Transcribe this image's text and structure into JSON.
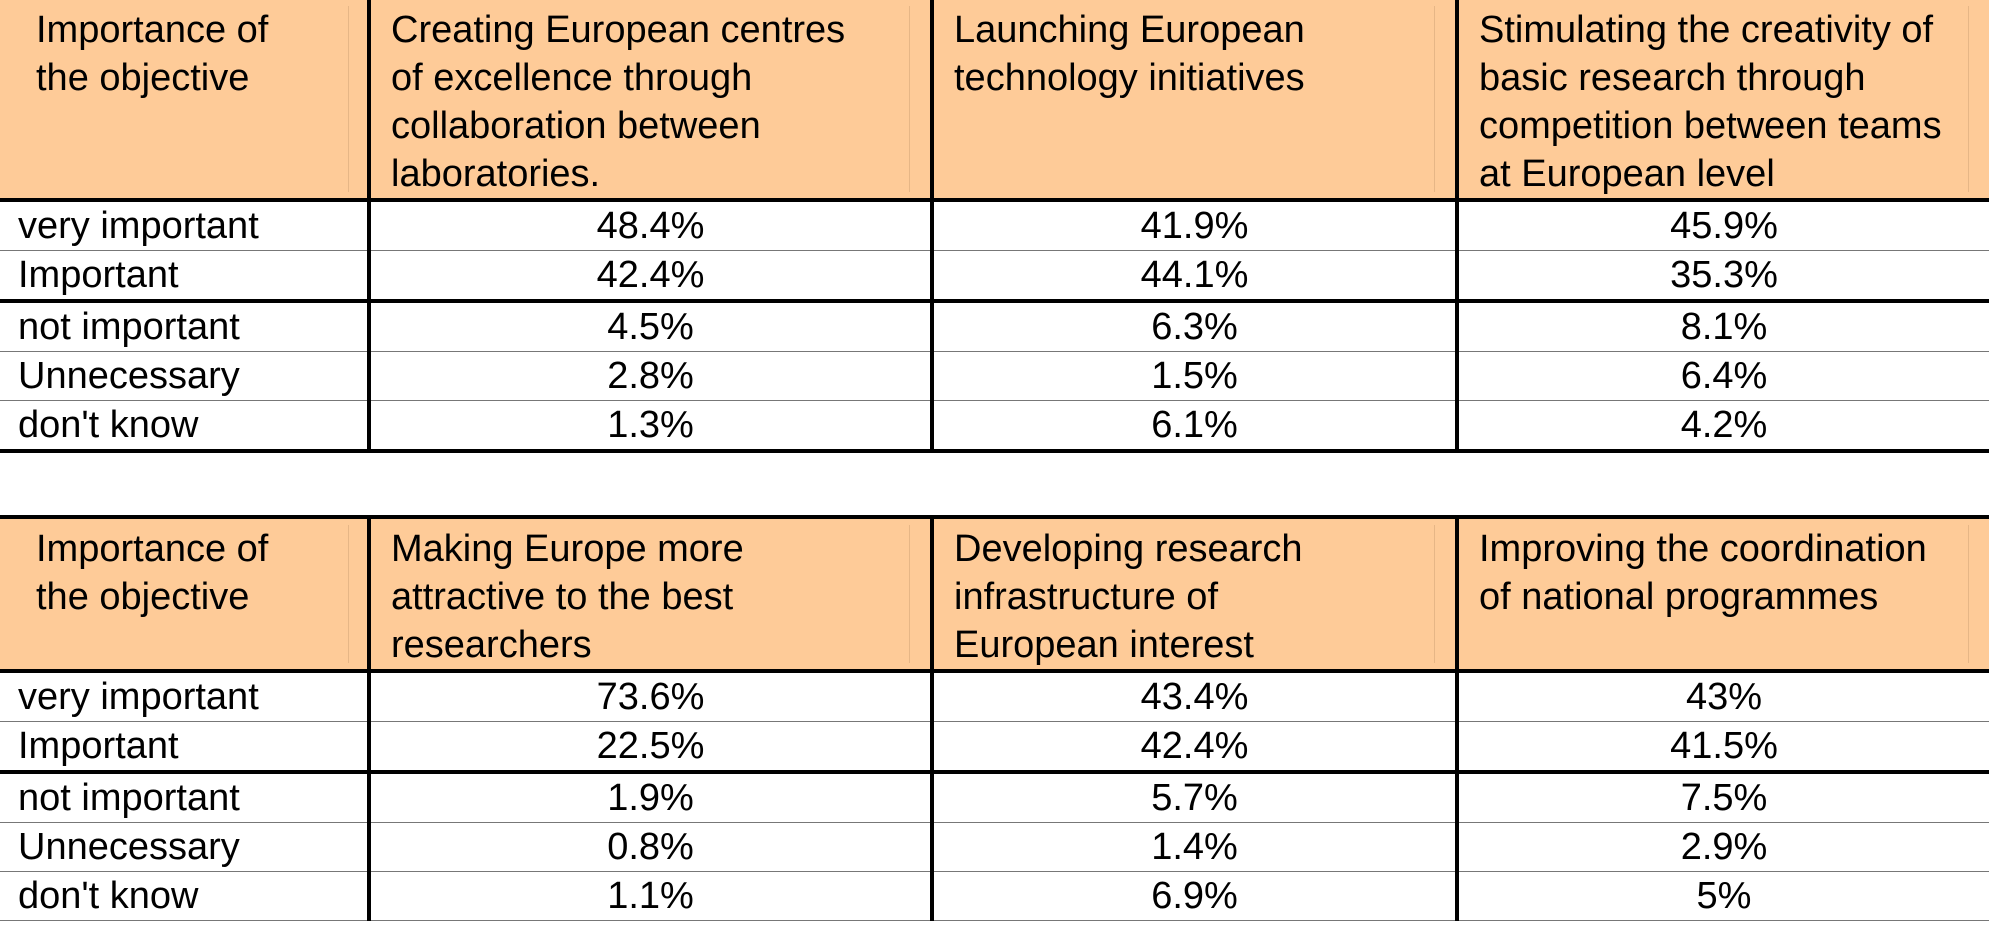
{
  "tables": [
    {
      "headers": [
        "Importance of the objective",
        "Creating European centres of excellence through collaboration between laboratories.",
        "Launching European technology initiatives",
        "Stimulating the creativity of basic research through competition between teams at European level"
      ],
      "header_lines": [
        [
          "Importance of",
          "the objective"
        ],
        [
          "Creating European centres",
          "of excellence through",
          "collaboration between",
          "laboratories."
        ],
        [
          "Launching European",
          "technology initiatives"
        ],
        [
          "Stimulating the creativity of",
          "basic research through",
          "competition between teams",
          "at European level"
        ]
      ],
      "rows": [
        {
          "label": "very important",
          "values": [
            "48.4%",
            "41.9%",
            "45.9%"
          ]
        },
        {
          "label": "Important",
          "values": [
            "42.4%",
            "44.1%",
            "35.3%"
          ]
        },
        {
          "label": "not important",
          "values": [
            "4.5%",
            "6.3%",
            "8.1%"
          ]
        },
        {
          "label": "Unnecessary",
          "values": [
            "2.8%",
            "1.5%",
            "6.4%"
          ]
        },
        {
          "label": "don't know",
          "values": [
            "1.3%",
            "6.1%",
            "4.2%"
          ]
        }
      ]
    },
    {
      "headers": [
        "Importance of the objective",
        "Making Europe more attractive to the best researchers",
        "Developing research infrastructure of European interest",
        "Improving the coordination of national programmes"
      ],
      "header_lines": [
        [
          "Importance of",
          "the objective"
        ],
        [
          "Making Europe more",
          "attractive to the best",
          "researchers"
        ],
        [
          "Developing research",
          "infrastructure of",
          "European interest"
        ],
        [
          "Improving the coordination",
          "of national programmes"
        ]
      ],
      "rows": [
        {
          "label": "very important",
          "values": [
            "73.6%",
            "43.4%",
            "43%"
          ]
        },
        {
          "label": "Important",
          "values": [
            "22.5%",
            "42.4%",
            "41.5%"
          ]
        },
        {
          "label": "not important",
          "values": [
            "1.9%",
            "5.7%",
            "7.5%"
          ]
        },
        {
          "label": "Unnecessary",
          "values": [
            "0.8%",
            "1.4%",
            "2.9%"
          ]
        },
        {
          "label": "don't know",
          "values": [
            "1.1%",
            "6.9%",
            "5%"
          ]
        }
      ]
    }
  ],
  "colors": {
    "header_background": "#fecb98",
    "border": "#000000"
  }
}
